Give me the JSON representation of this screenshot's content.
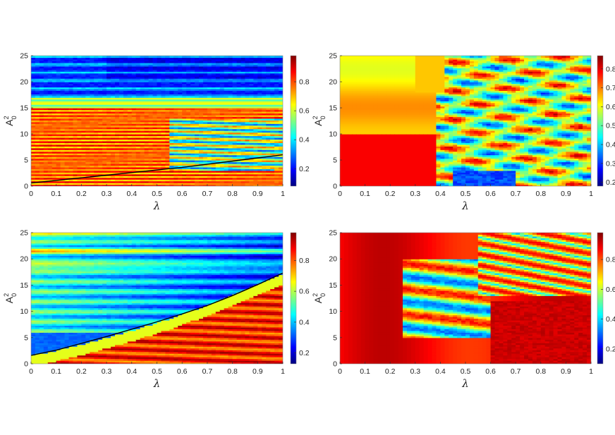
{
  "figure": {
    "colormap": "jet",
    "colormap_stops": [
      "#00007f",
      "#0000ff",
      "#007fff",
      "#00ffff",
      "#7fff7f",
      "#ffff00",
      "#ff7f00",
      "#ff0000",
      "#7f0000"
    ]
  },
  "chart_data": [
    {
      "type": "heatmap",
      "panel": "top-left",
      "title": "",
      "xlabel": "λ",
      "ylabel_base": "A",
      "ylabel_sup": "2",
      "ylabel_sub": "0",
      "xlim": [
        0,
        1
      ],
      "ylim": [
        0,
        25
      ],
      "xticks": [
        "0",
        "0.1",
        "0.2",
        "0.3",
        "0.4",
        "0.5",
        "0.6",
        "0.7",
        "0.8",
        "0.9",
        "1"
      ],
      "yticks": [
        "0",
        "5",
        "10",
        "15",
        "20",
        "25"
      ],
      "colorbar": {
        "range": [
          0.08,
          0.98
        ],
        "ticks": [
          "0.2",
          "0.4",
          "0.6",
          "0.8"
        ],
        "tick_values": [
          0.2,
          0.4,
          0.6,
          0.8
        ]
      },
      "curve": {
        "x": [
          0,
          0.1,
          0.2,
          0.3,
          0.4,
          0.5,
          0.6,
          0.7,
          0.8,
          0.9,
          1.0
        ],
        "y": [
          0.6,
          1.1,
          1.6,
          2.1,
          2.6,
          3.1,
          3.6,
          4.2,
          4.8,
          5.4,
          6.0
        ]
      }
    },
    {
      "type": "heatmap",
      "panel": "top-right",
      "title": "",
      "xlabel": "λ",
      "ylabel_base": "A",
      "ylabel_sup": "2",
      "ylabel_sub": "0",
      "xlim": [
        0,
        1
      ],
      "ylim": [
        0,
        25
      ],
      "xticks": [
        "0",
        "0.1",
        "0.2",
        "0.3",
        "0.4",
        "0.5",
        "0.6",
        "0.7",
        "0.8",
        "0.9",
        "1"
      ],
      "yticks": [
        "0",
        "5",
        "10",
        "15",
        "20",
        "25"
      ],
      "colorbar": {
        "range": [
          0.18,
          0.87
        ],
        "ticks": [
          "0.2",
          "0.3",
          "0.4",
          "0.5",
          "0.6",
          "0.7",
          "0.8"
        ],
        "tick_values": [
          0.2,
          0.3,
          0.4,
          0.5,
          0.6,
          0.7,
          0.8
        ]
      }
    },
    {
      "type": "heatmap",
      "panel": "bottom-left",
      "title": "",
      "xlabel": "λ",
      "ylabel_base": "A",
      "ylabel_sup": "2",
      "ylabel_sub": "0",
      "xlim": [
        0,
        1
      ],
      "ylim": [
        0,
        25
      ],
      "xticks": [
        "0",
        "0.1",
        "0.2",
        "0.3",
        "0.4",
        "0.5",
        "0.6",
        "0.7",
        "0.8",
        "0.9",
        "1"
      ],
      "yticks": [
        "0",
        "5",
        "10",
        "15",
        "20",
        "25"
      ],
      "colorbar": {
        "range": [
          0.13,
          0.98
        ],
        "ticks": [
          "0.2",
          "0.4",
          "0.6",
          "0.8"
        ],
        "tick_values": [
          0.2,
          0.4,
          0.6,
          0.8
        ]
      },
      "curve": {
        "x": [
          0,
          0.1,
          0.2,
          0.3,
          0.4,
          0.5,
          0.6,
          0.7,
          0.8,
          0.9,
          1.0
        ],
        "y": [
          1.6,
          2.6,
          3.9,
          5.2,
          6.6,
          8.0,
          9.5,
          11.1,
          13.0,
          15.1,
          17.3
        ]
      }
    },
    {
      "type": "heatmap",
      "panel": "bottom-right",
      "title": "",
      "xlabel": "λ",
      "ylabel_base": "A",
      "ylabel_sup": "2",
      "ylabel_sub": "0",
      "xlim": [
        0,
        1
      ],
      "ylim": [
        0,
        25
      ],
      "xticks": [
        "0",
        "0.1",
        "0.2",
        "0.3",
        "0.4",
        "0.5",
        "0.6",
        "0.7",
        "0.8",
        "0.9",
        "1"
      ],
      "yticks": [
        "0",
        "5",
        "10",
        "15",
        "20",
        "25"
      ],
      "colorbar": {
        "range": [
          0.1,
          0.98
        ],
        "ticks": [
          "0.2",
          "0.4",
          "0.6",
          "0.8"
        ],
        "tick_values": [
          0.2,
          0.4,
          0.6,
          0.8
        ]
      }
    }
  ]
}
